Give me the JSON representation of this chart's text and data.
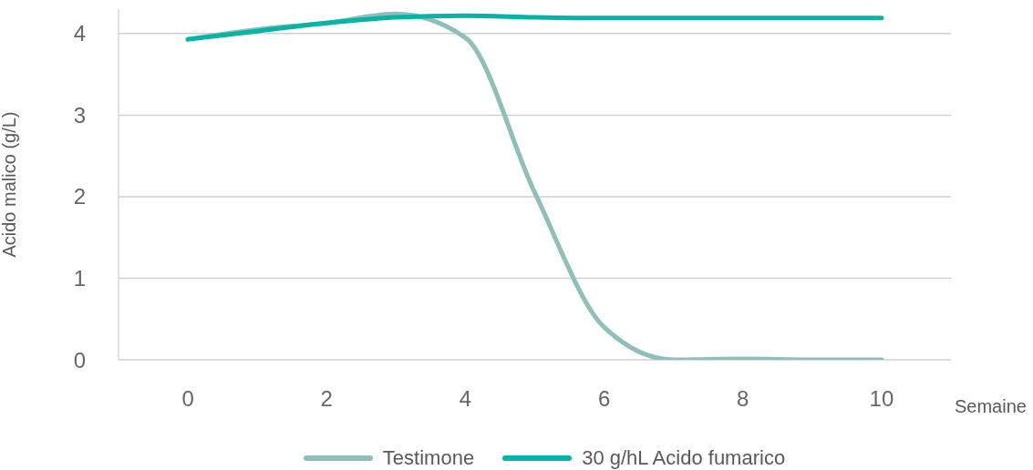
{
  "chart_data": {
    "type": "line",
    "xlabel": "Semaine",
    "ylabel": "Acido malico (g/L)",
    "x": [
      0,
      1,
      2,
      3,
      4,
      5,
      6,
      7,
      8,
      9,
      10
    ],
    "xlim": [
      -1,
      11
    ],
    "xticks": [
      0,
      2,
      4,
      6,
      8,
      10
    ],
    "ylim": [
      0,
      4.3
    ],
    "yticks": [
      0,
      1,
      2,
      3,
      4
    ],
    "grid": "y",
    "legend": "bottom",
    "marker": "none",
    "line_style": "solid",
    "series": [
      {
        "name": "Testimone",
        "color": "#8fbfb8",
        "values": [
          3.93,
          4.05,
          4.13,
          4.24,
          3.95,
          2.05,
          0.4,
          0,
          0.01,
          0,
          0
        ]
      },
      {
        "name": "30 g/hL Acido fumarico",
        "color": "#00b4a6",
        "values": [
          3.93,
          4.03,
          4.13,
          4.2,
          4.22,
          4.2,
          4.19,
          4.19,
          4.19,
          4.19,
          4.19
        ]
      }
    ]
  }
}
